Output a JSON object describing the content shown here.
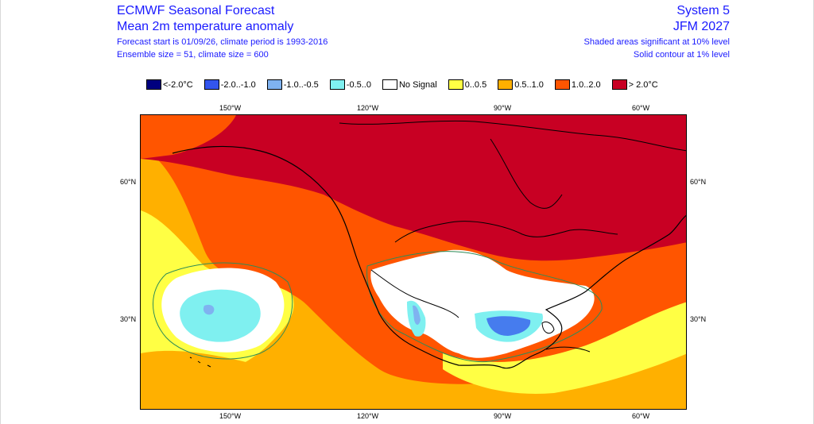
{
  "header": {
    "title": "ECMWF Seasonal Forecast",
    "subtitle": "Mean 2m temperature anomaly",
    "info_line1": "Forecast start is 01/09/26, climate period is 1993-2016",
    "info_line2": "Ensemble size = 51, climate size = 600",
    "system": "System 5",
    "period": "JFM 2027",
    "note1": "Shaded areas significant at 10% level",
    "note2": "Solid contour at 1% level"
  },
  "legend": [
    {
      "label": "<-2.0°C",
      "color": "#00007f"
    },
    {
      "label": "-2.0..-1.0",
      "color": "#3355ee"
    },
    {
      "label": "-1.0..-0.5",
      "color": "#7fb2f0"
    },
    {
      "label": "-0.5..0",
      "color": "#7ff0f0"
    },
    {
      "label": "No Signal",
      "color": "#ffffff"
    },
    {
      "label": "0..0.5",
      "color": "#ffff44"
    },
    {
      "label": "0.5..1.0",
      "color": "#ffb000"
    },
    {
      "label": "1.0..2.0",
      "color": "#ff5500"
    },
    {
      "label": "> 2.0°C",
      "color": "#c80023"
    }
  ],
  "axes": {
    "lon_top": [
      "150°W",
      "120°W",
      "90°W",
      "60°W"
    ],
    "lon_bottom": [
      "150°W",
      "120°W",
      "90°W",
      "60°W"
    ],
    "lat_left": [
      "60°N",
      "30°N"
    ],
    "lat_right": [
      "60°N",
      "30°N"
    ]
  }
}
